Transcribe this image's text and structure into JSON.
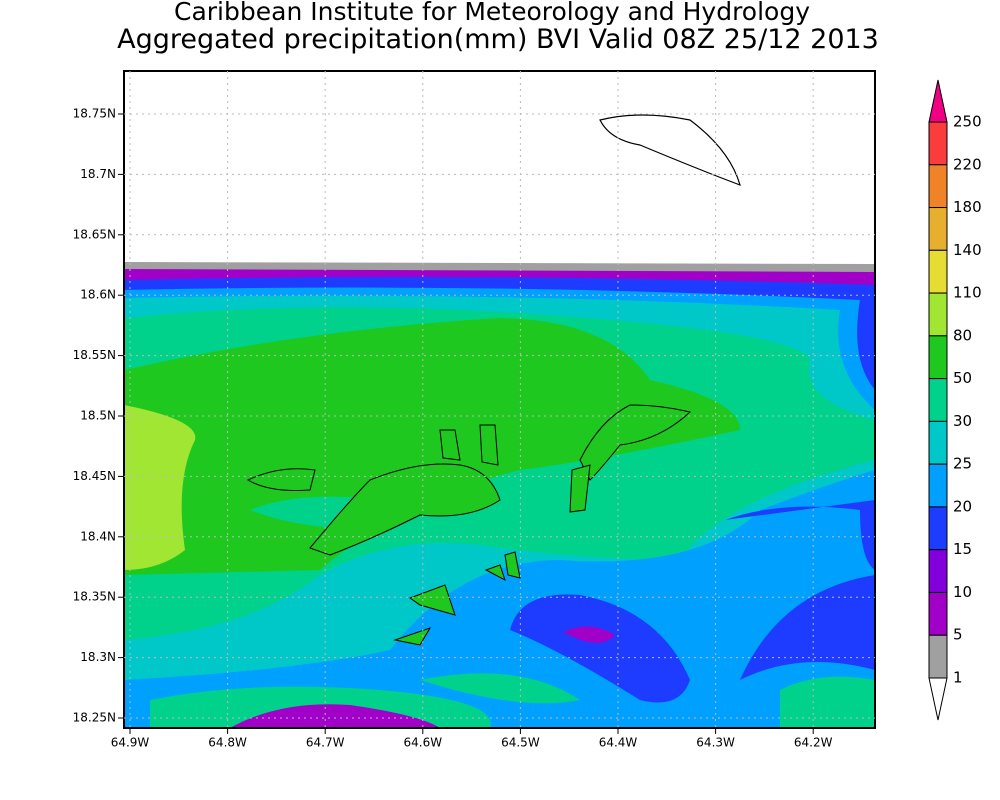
{
  "header": {
    "title": "Caribbean Institute for Meteorology and Hydrology",
    "subtitle": "Aggregated precipitation(mm) BVI Valid 08Z 25/12 2013"
  },
  "map": {
    "lat_labels": [
      "18.75N",
      "18.7N",
      "18.65N",
      "18.6N",
      "18.55N",
      "18.5N",
      "18.45N",
      "18.4N",
      "18.35N",
      "18.3N",
      "18.25N"
    ],
    "lon_labels": [
      "64.9W",
      "64.8W",
      "64.7W",
      "64.6W",
      "64.5W",
      "64.4W",
      "64.3W",
      "64.2W"
    ]
  },
  "legend": {
    "labels": [
      "250",
      "220",
      "180",
      "140",
      "110",
      "80",
      "50",
      "30",
      "25",
      "20",
      "15",
      "10",
      "5",
      "1"
    ],
    "colors": [
      "#f00082",
      "#fa3c3c",
      "#f08228",
      "#e6af2d",
      "#e6dc32",
      "#a0e632",
      "#1ec81e",
      "#00d28c",
      "#00c8c8",
      "#00a0ff",
      "#1e3cff",
      "#8200dc",
      "#a000c8",
      "#a0a0a0",
      "#ffffff"
    ]
  }
}
